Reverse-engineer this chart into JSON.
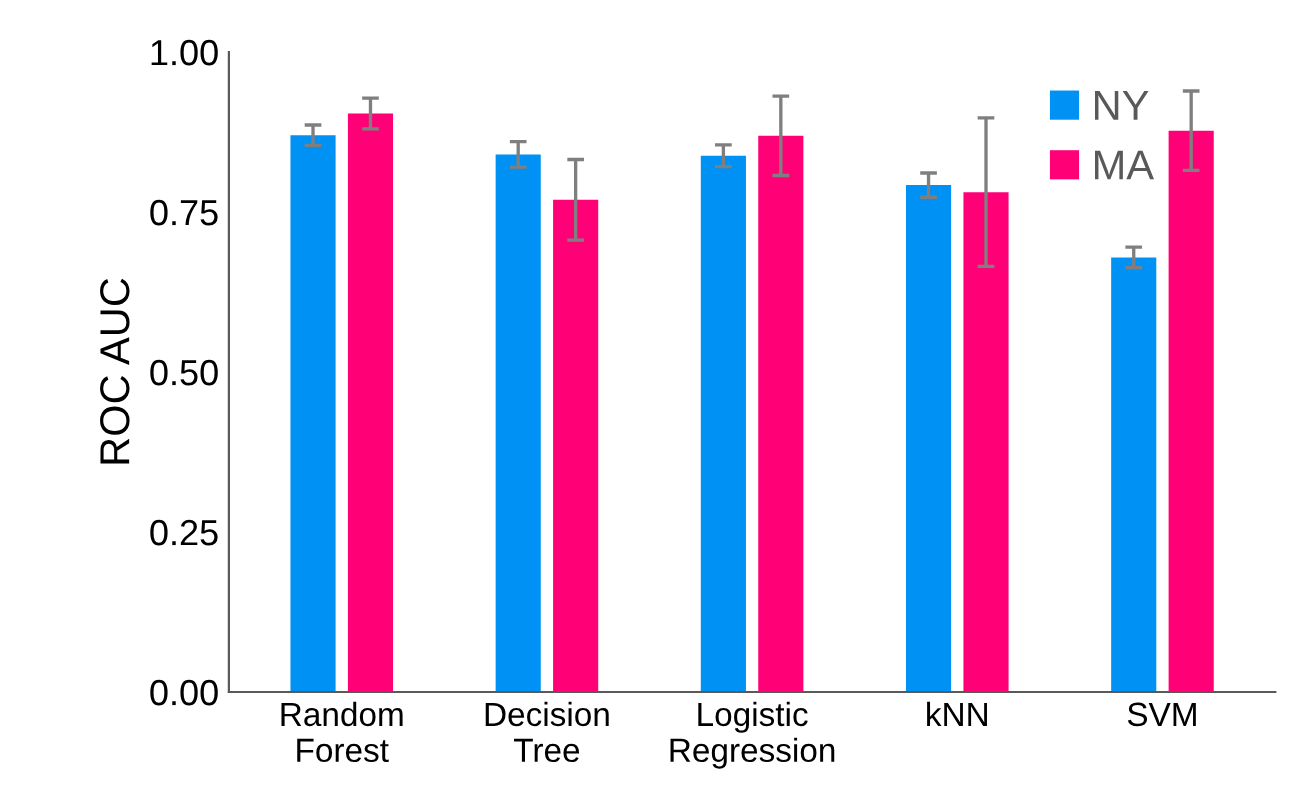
{
  "chart_data": {
    "type": "bar",
    "ylabel": "ROC AUC",
    "categories": [
      "Random\nForest",
      "Decision\nTree",
      "Logistic\nRegression",
      "kNN",
      "SVM"
    ],
    "series": [
      {
        "name": "NY",
        "color": "#0091f5",
        "values": [
          0.87,
          0.84,
          0.838,
          0.792,
          0.679
        ],
        "errors": [
          0.016,
          0.02,
          0.017,
          0.019,
          0.016
        ]
      },
      {
        "name": "MA",
        "color": "#ff0077",
        "values": [
          0.904,
          0.769,
          0.869,
          0.781,
          0.877
        ],
        "errors": [
          0.024,
          0.063,
          0.062,
          0.116,
          0.062
        ]
      }
    ],
    "ylim": [
      0,
      1
    ],
    "yticks": [
      {
        "value": 0,
        "label": "0.00"
      },
      {
        "value": 0.25,
        "label": "0.25"
      },
      {
        "value": 0.5,
        "label": "0.50"
      },
      {
        "value": 0.75,
        "label": "0.75"
      },
      {
        "value": 1,
        "label": "1.00"
      }
    ],
    "grid": false,
    "legend": "top right"
  }
}
